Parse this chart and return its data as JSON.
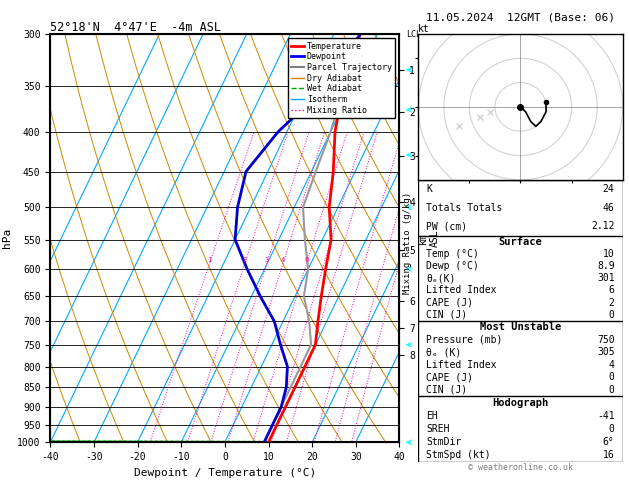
{
  "title_left": "52°18'N  4°47'E  -4m ASL",
  "title_right": "11.05.2024  12GMT (Base: 06)",
  "xlabel": "Dewpoint / Temperature (°C)",
  "ylabel_left": "hPa",
  "pressure_levels": [
    300,
    350,
    400,
    450,
    500,
    550,
    600,
    650,
    700,
    750,
    800,
    850,
    900,
    950,
    1000
  ],
  "pressure_labels": [
    "300",
    "350",
    "400",
    "450",
    "500",
    "550",
    "600",
    "650",
    "700",
    "750",
    "800",
    "850",
    "900",
    "950",
    "1000"
  ],
  "temp_x": [
    10,
    10,
    10,
    10,
    10,
    10,
    8,
    6,
    4,
    2,
    -2,
    -5,
    -9,
    -12,
    -14
  ],
  "temp_p": [
    1000,
    950,
    900,
    850,
    800,
    750,
    700,
    650,
    600,
    550,
    500,
    450,
    400,
    350,
    300
  ],
  "dewp_x": [
    9,
    9,
    9,
    8,
    6,
    2,
    -2,
    -8,
    -14,
    -20,
    -23,
    -25,
    -22,
    -16,
    -14
  ],
  "dewp_p": [
    1000,
    950,
    900,
    850,
    800,
    750,
    700,
    650,
    600,
    550,
    500,
    450,
    400,
    350,
    300
  ],
  "parcel_x": [
    9,
    9,
    9,
    9,
    9,
    9,
    6,
    2,
    0,
    -4,
    -8,
    -9,
    -10,
    -12,
    -14
  ],
  "parcel_p": [
    1000,
    950,
    900,
    850,
    800,
    750,
    700,
    650,
    600,
    550,
    500,
    450,
    400,
    350,
    300
  ],
  "xlim": [
    -40,
    40
  ],
  "pmin": 300,
  "pmax": 1000,
  "skew": 45.0,
  "mixing_ratio_values": [
    1,
    2,
    3,
    4,
    6,
    8,
    10,
    15,
    20,
    25
  ],
  "km_ticks": [
    1,
    2,
    3,
    4,
    5,
    6,
    7,
    8
  ],
  "km_pressures": [
    898,
    794,
    697,
    609,
    529,
    455,
    420,
    388
  ],
  "lcl_pressure": 998,
  "stats": {
    "K": 24,
    "Totals_Totals": 46,
    "PW_cm": 2.12,
    "Surface": {
      "Temp_C": 10,
      "Dewp_C": 8.9,
      "theta_e_K": 301,
      "Lifted_Index": 6,
      "CAPE_J": 2,
      "CIN_J": 0
    },
    "Most_Unstable": {
      "Pressure_mb": 750,
      "theta_e_K": 305,
      "Lifted_Index": 4,
      "CAPE_J": 0,
      "CIN_J": 0
    },
    "Hodograph": {
      "EH": -41,
      "SREH": 0,
      "StmDir_deg": 6,
      "StmSpd_kt": 16
    }
  },
  "hodo_u": [
    0,
    1,
    2,
    3,
    4,
    5,
    5
  ],
  "hodo_v": [
    0,
    -1,
    -3,
    -4,
    -3,
    -1,
    1
  ],
  "hodo_gray_u": [
    -8,
    -12,
    -6
  ],
  "hodo_gray_v": [
    -2,
    -4,
    -1
  ],
  "colors": {
    "temperature": "#ff0000",
    "dewpoint": "#0000cc",
    "parcel": "#999999",
    "dry_adiabat": "#cc8800",
    "wet_adiabat": "#00aa00",
    "isotherm": "#00aaff",
    "mixing_ratio": "#ff00aa",
    "background": "#ffffff",
    "grid": "#000000"
  }
}
